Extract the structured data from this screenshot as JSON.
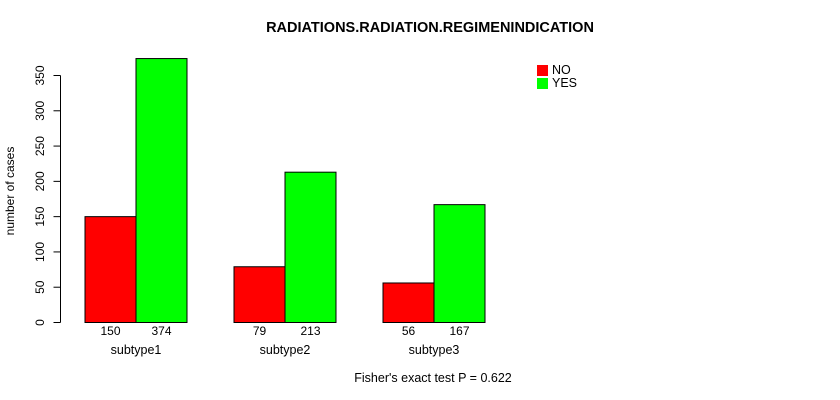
{
  "chart_data": {
    "type": "bar",
    "title": "RADIATIONS.RADIATION.REGIMENINDICATION",
    "categories": [
      "subtype1",
      "subtype2",
      "subtype3"
    ],
    "series": [
      {
        "name": "NO",
        "color": "#ff0000",
        "values": [
          150,
          79,
          56
        ]
      },
      {
        "name": "YES",
        "color": "#00ff00",
        "values": [
          374,
          213,
          167
        ]
      }
    ],
    "xlabel": "",
    "ylabel": "number of cases",
    "ylim": [
      0,
      350
    ],
    "yticks": [
      0,
      50,
      100,
      150,
      200,
      250,
      300,
      350
    ],
    "bar_value_labels": [
      [
        150,
        374
      ],
      [
        79,
        213
      ],
      [
        56,
        167
      ]
    ],
    "grid": false,
    "legend_position": "top-right",
    "caption": "Fisher's exact test P = 0.622"
  }
}
